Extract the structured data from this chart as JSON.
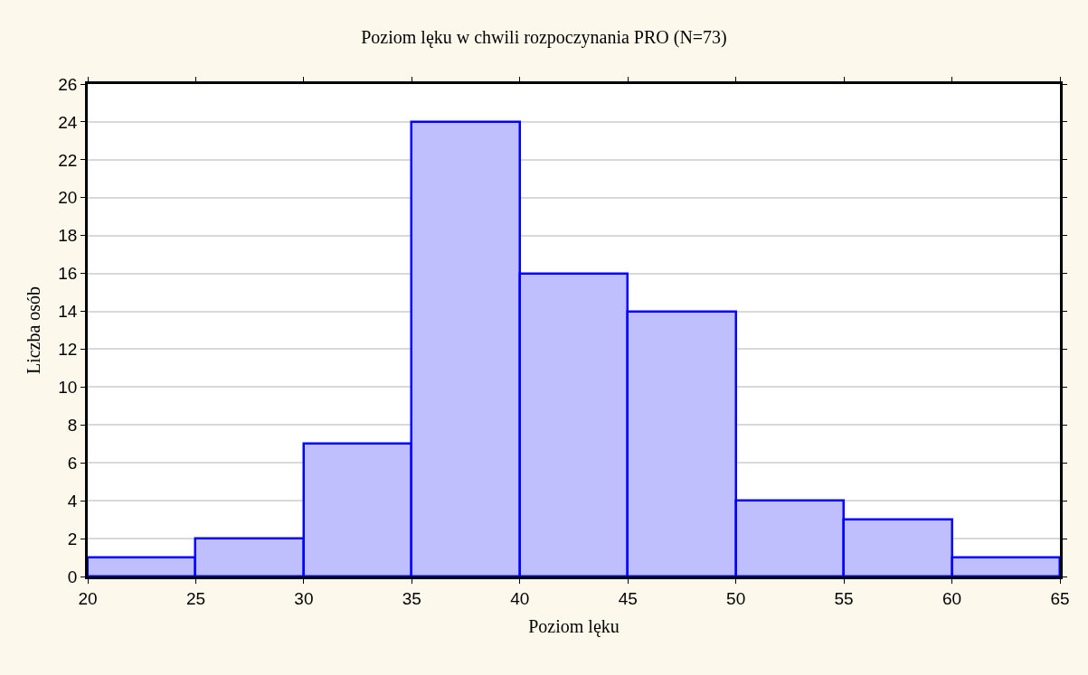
{
  "chart_data": {
    "type": "histogram",
    "title": "Poziom lęku w chwili rozpoczynania PRO (N=73)",
    "xlabel": "Poziom lęku",
    "ylabel": "Liczba osób",
    "bins": [
      20,
      25,
      30,
      35,
      40,
      45,
      50,
      55,
      60,
      65
    ],
    "values": [
      1,
      2,
      7,
      24,
      16,
      14,
      4,
      3,
      1
    ],
    "color": "#bfbffd",
    "xlim": [
      20,
      65
    ],
    "xticks": [
      20,
      25,
      30,
      35,
      40,
      45,
      50,
      55,
      60,
      65
    ],
    "ylim": [
      0,
      26
    ],
    "yticks": [
      0,
      2,
      4,
      6,
      8,
      10,
      12,
      14,
      16,
      18,
      20,
      22,
      24,
      26
    ],
    "grid": "y"
  }
}
